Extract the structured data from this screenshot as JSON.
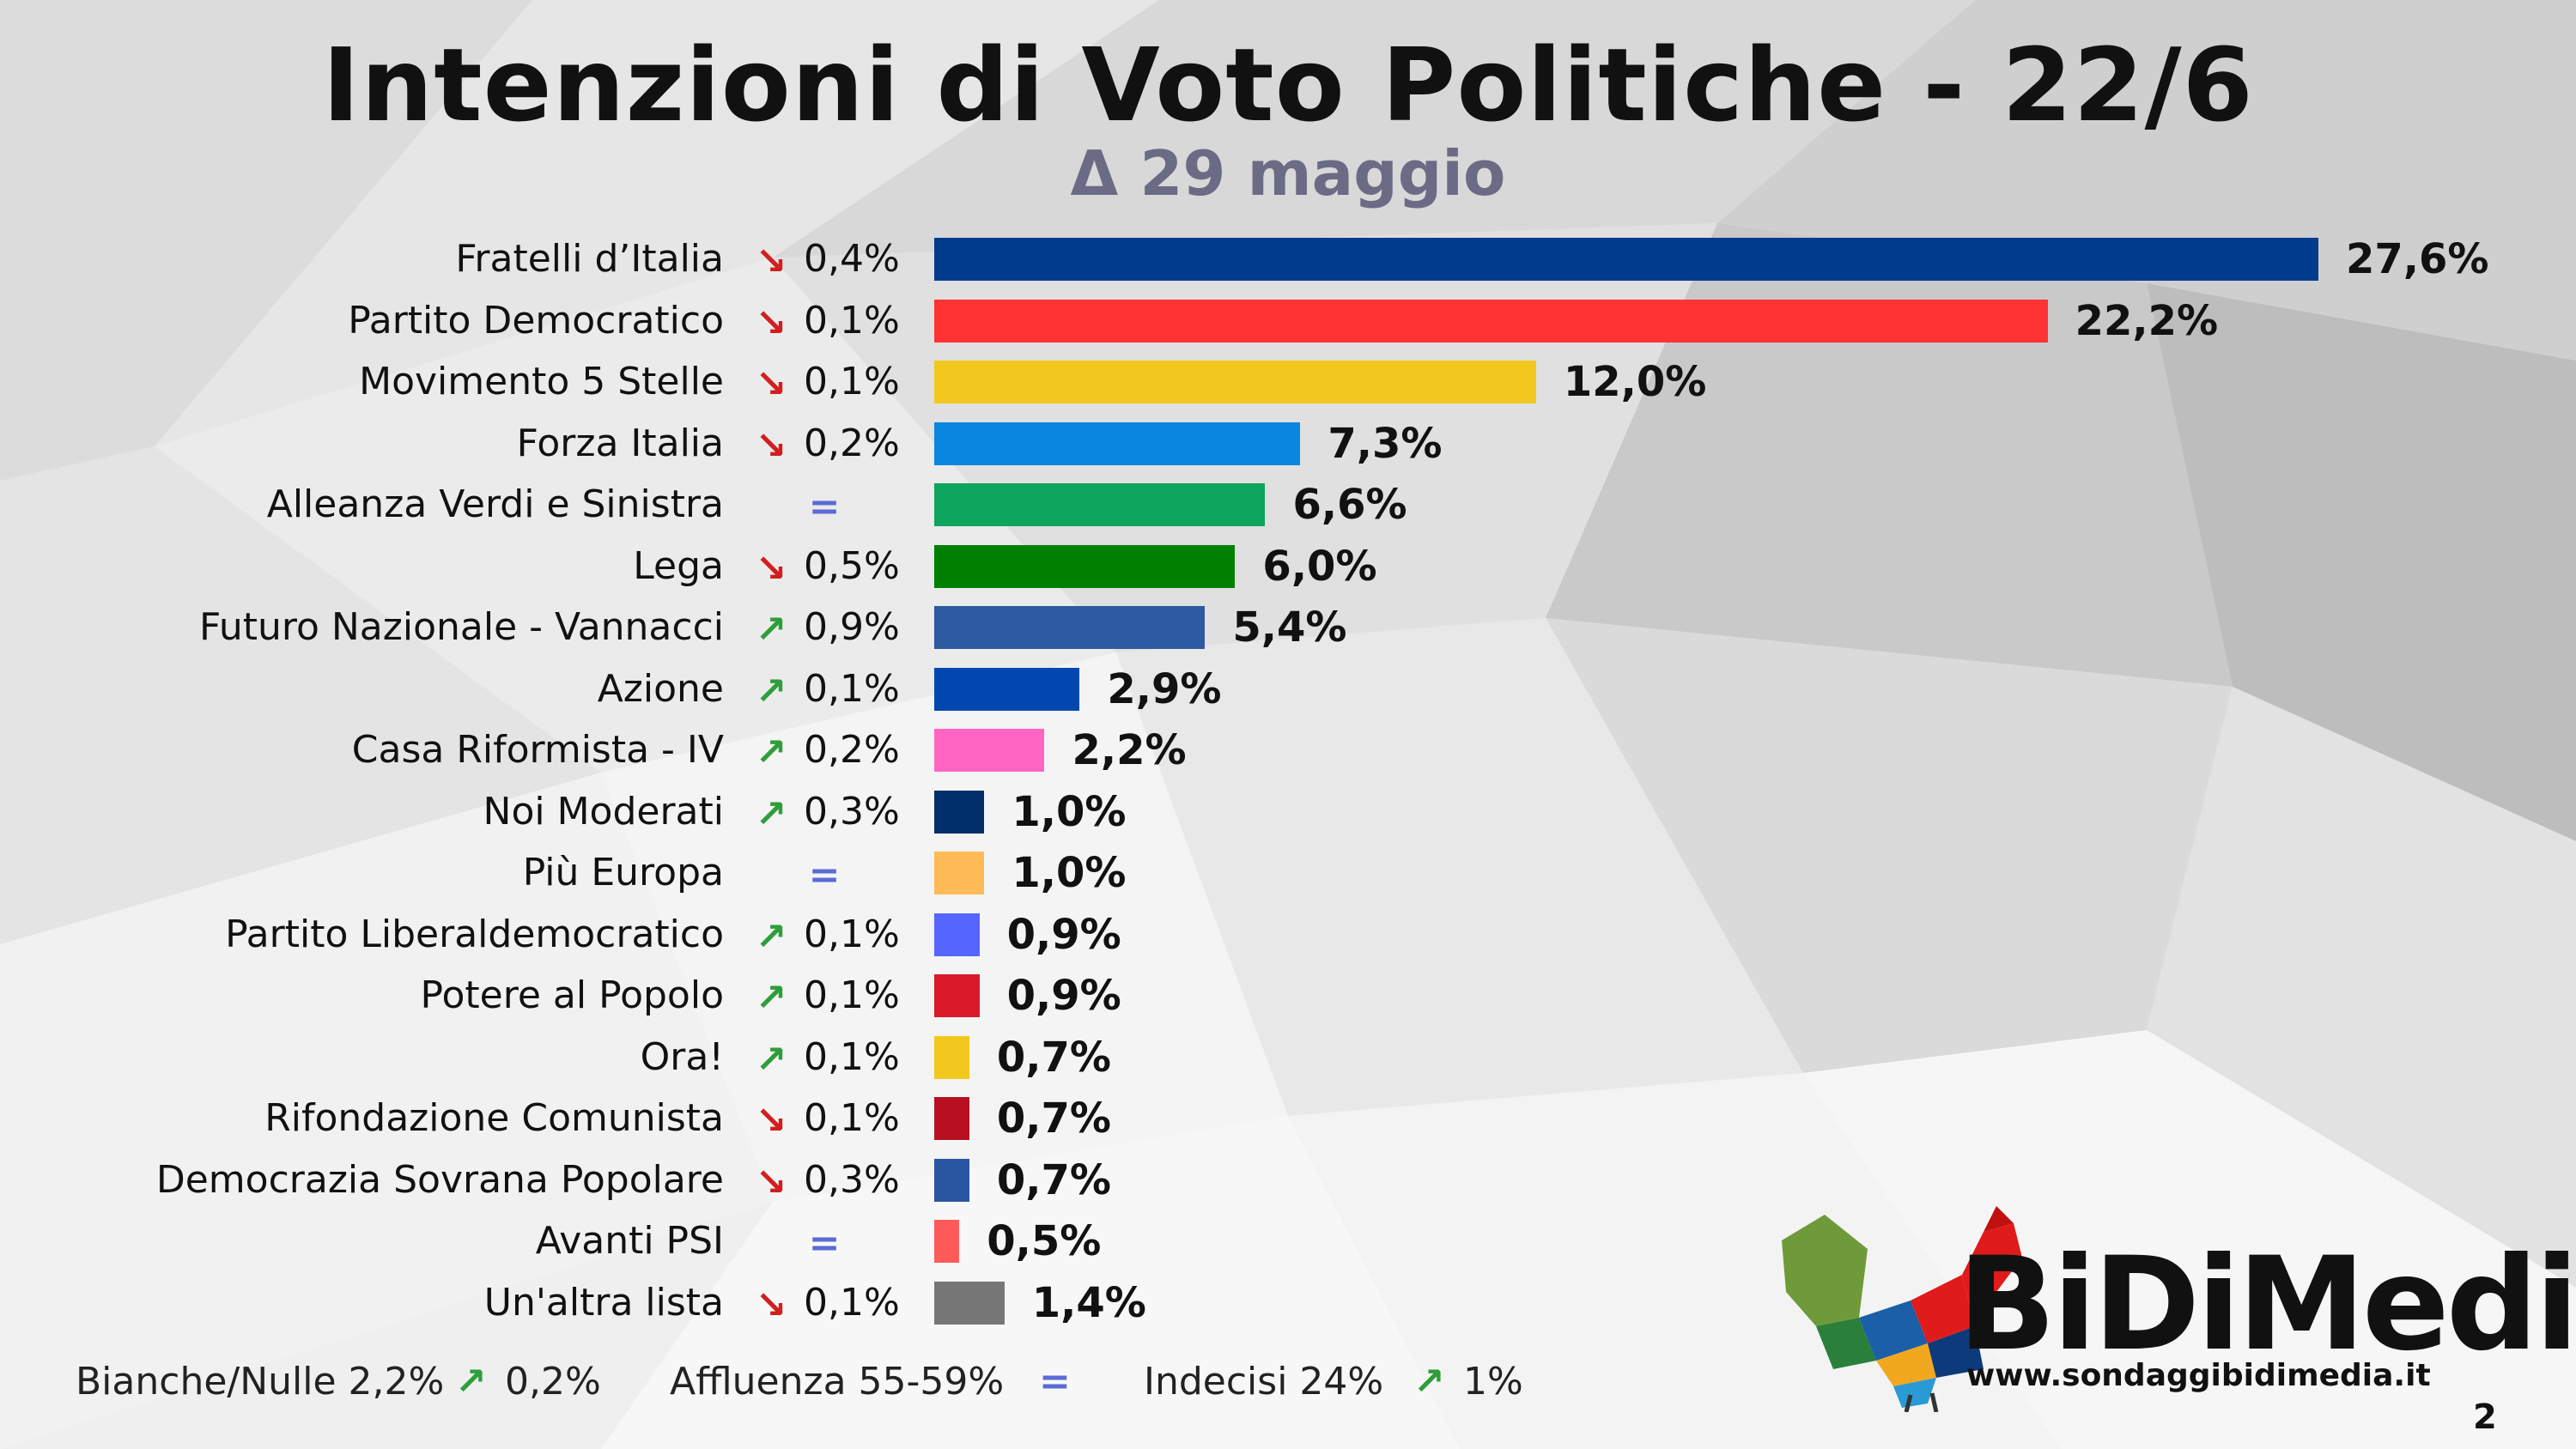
{
  "header": {
    "title": "Intenzioni di Voto Politiche - 22/6",
    "subtitle": "Δ 29 maggio"
  },
  "chart_data": {
    "type": "bar",
    "orientation": "horizontal",
    "title": "Intenzioni di Voto Politiche - 22/6",
    "subtitle": "Δ 29 maggio",
    "xlabel": "",
    "ylabel": "",
    "grid": false,
    "categories": [
      "Fratelli d’Italia",
      "Partito Democratico",
      "Movimento 5 Stelle",
      "Forza Italia",
      "Alleanza Verdi e Sinistra",
      "Lega",
      "Futuro Nazionale - Vannacci",
      "Azione",
      "Casa Riformista - IV",
      "Noi Moderati",
      "Più Europa",
      "Partito Liberaldemocratico",
      "Potere al Popolo",
      "Ora!",
      "Rifondazione Comunista",
      "Democrazia Sovrana Popolare",
      "Avanti PSI",
      "Un'altra lista"
    ],
    "values": [
      27.6,
      22.2,
      12.0,
      7.3,
      6.6,
      6.0,
      5.4,
      2.9,
      2.2,
      1.0,
      1.0,
      0.9,
      0.9,
      0.7,
      0.7,
      0.7,
      0.5,
      1.4
    ],
    "value_labels": [
      "27,6%",
      "22,2%",
      "12,0%",
      "7,3%",
      "6,6%",
      "6,0%",
      "5,4%",
      "2,9%",
      "2,2%",
      "1,0%",
      "1,0%",
      "0,9%",
      "0,9%",
      "0,7%",
      "0,7%",
      "0,7%",
      "0,5%",
      "1,4%"
    ],
    "changes": [
      -0.4,
      -0.1,
      -0.1,
      -0.2,
      0,
      -0.5,
      0.9,
      0.1,
      0.2,
      0.3,
      0,
      0.1,
      0.1,
      0.1,
      -0.1,
      -0.3,
      0,
      -0.1
    ],
    "change_labels": [
      "0,4%",
      "0,1%",
      "0,1%",
      "0,2%",
      "",
      "0,5%",
      "0,9%",
      "0,1%",
      "0,2%",
      "0,3%",
      "",
      "0,1%",
      "0,1%",
      "0,1%",
      "0,1%",
      "0,3%",
      "",
      "0,1%"
    ],
    "change_directions": [
      "down",
      "down",
      "down",
      "down",
      "equal",
      "down",
      "up",
      "up",
      "up",
      "up",
      "equal",
      "up",
      "up",
      "up",
      "down",
      "down",
      "equal",
      "down"
    ],
    "colors": [
      "#003b8e",
      "#ff3333",
      "#f2c81e",
      "#0a85e0",
      "#0ea55c",
      "#008000",
      "#2d5aa0",
      "#0048b0",
      "#ff66c4",
      "#002f6c",
      "#ffbb55",
      "#5566ff",
      "#d91a2a",
      "#f2c81e",
      "#b81020",
      "#2a55a0",
      "#ff5a5a",
      "#777777"
    ],
    "xlim": [
      0,
      27.6
    ]
  },
  "symbols": {
    "up": "↗",
    "down": "↘",
    "equal": "="
  },
  "footer": {
    "blank_null": "Bianche/Nulle 2,2%",
    "blank_null_change": "0,2%",
    "blank_null_dir": "up",
    "turnout": "Affluenza 55-59%",
    "turnout_dir": "equal",
    "undecided": "Indecisi 24%",
    "undecided_change": "1%",
    "undecided_dir": "up"
  },
  "brand": {
    "name": "BiDiMedia",
    "website": "www.sondaggibidimedia.it",
    "page_number": "2"
  }
}
